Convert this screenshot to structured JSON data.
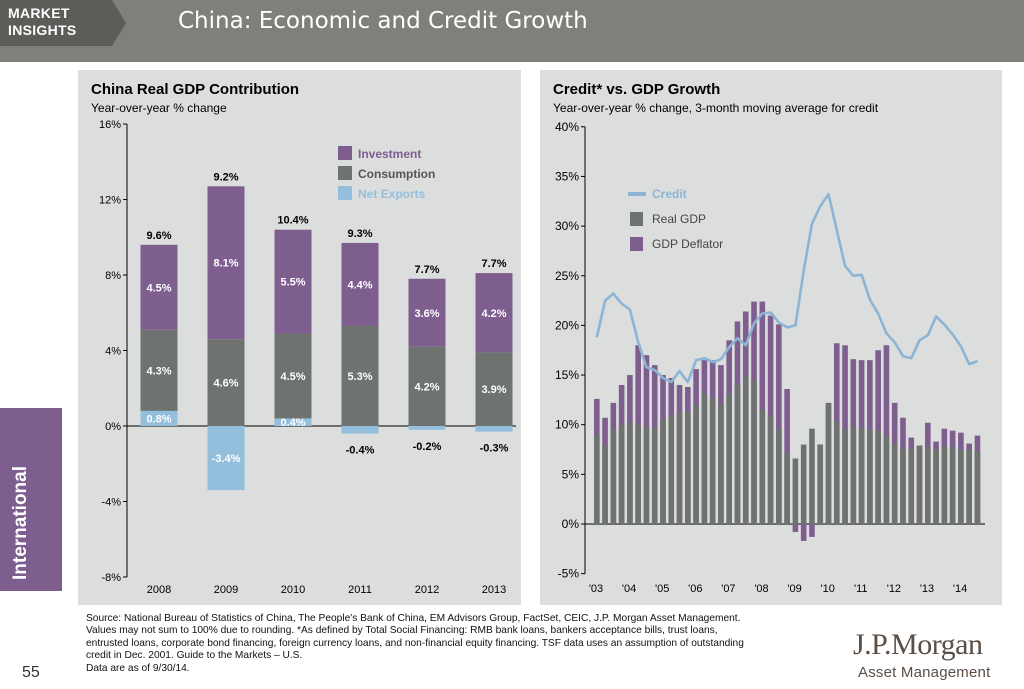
{
  "header": {
    "section_line1": "MARKET",
    "section_line2": "INSIGHTS",
    "title": "China: Economic and Credit Growth"
  },
  "side_tab": "International",
  "page_number": "55",
  "colors": {
    "investment": "#7e5d8f",
    "consumption": "#6e736f",
    "net_exports": "#94bfdc",
    "credit": "#8cb4d4",
    "real_gdp": "#6e736f",
    "gdp_deflator": "#7e5d8f",
    "panel_bg": "#dcdede"
  },
  "footnote": [
    "Source: National Bureau of Statistics of China, The People's Bank of China, EM Advisors Group, FactSet, CEIC, J.P. Morgan Asset Management.",
    "Values may not sum to 100% due to rounding. *As defined by Total Social Financing: RMB bank loans, bankers acceptance bills, trust loans,",
    "entrusted loans, corporate bond financing, foreign currency loans, and non-financial equity financing. TSF data uses an assumption of outstanding",
    "credit in Dec. 2001. Guide to the Markets – U.S.",
    "Data are as of 9/30/14."
  ],
  "logo": {
    "main": "J.P.Morgan",
    "sub": "Asset Management"
  },
  "chart_data": [
    {
      "type": "bar",
      "stacked": true,
      "title": "China Real GDP Contribution",
      "subtitle": "Year-over-year % change",
      "categories": [
        "2008",
        "2009",
        "2010",
        "2011",
        "2012",
        "2013"
      ],
      "series": [
        {
          "name": "Net Exports",
          "values": [
            0.8,
            -3.4,
            0.4,
            -0.4,
            -0.2,
            -0.3
          ],
          "labels": [
            "0.8%",
            "-3.4%",
            "0.4%",
            "-0.4%",
            "-0.2%",
            "-0.3%"
          ]
        },
        {
          "name": "Consumption",
          "values": [
            4.3,
            4.6,
            4.5,
            5.3,
            4.2,
            3.9
          ],
          "labels": [
            "4.3%",
            "4.6%",
            "4.5%",
            "5.3%",
            "4.2%",
            "3.9%"
          ]
        },
        {
          "name": "Investment",
          "values": [
            4.5,
            8.1,
            5.5,
            4.4,
            3.6,
            4.2
          ],
          "labels": [
            "4.5%",
            "8.1%",
            "5.5%",
            "4.4%",
            "3.6%",
            "4.2%"
          ]
        }
      ],
      "totals": [
        "9.6%",
        "9.2%",
        "10.4%",
        "9.3%",
        "7.7%",
        "7.7%"
      ],
      "legend_order": [
        "Investment",
        "Consumption",
        "Net Exports"
      ],
      "ylim": [
        -8,
        16
      ],
      "yticks": [
        "16%",
        "12%",
        "8%",
        "4%",
        "0%",
        "-4%",
        "-8%"
      ],
      "ytick_values": [
        16,
        12,
        8,
        4,
        0,
        -4,
        -8
      ],
      "legend_position": "top-right",
      "grid": false
    },
    {
      "type": "bar+line",
      "title": "Credit* vs. GDP Growth",
      "subtitle": "Year-over-year % change, 3-month moving average for credit",
      "x_tick_labels": [
        "'03",
        "'04",
        "'05",
        "'06",
        "'07",
        "'08",
        "'09",
        "'10",
        "'11",
        "'12",
        "'13",
        "'14"
      ],
      "x_tick_values": [
        2003,
        2004,
        2005,
        2006,
        2007,
        2008,
        2009,
        2010,
        2011,
        2012,
        2013,
        2014
      ],
      "yticks": [
        "40%",
        "35%",
        "30%",
        "25%",
        "20%",
        "15%",
        "10%",
        "5%",
        "0%",
        "-5%"
      ],
      "ytick_values": [
        40,
        35,
        30,
        25,
        20,
        15,
        10,
        5,
        0,
        -5
      ],
      "ylim": [
        -5,
        40
      ],
      "xlim": [
        2003,
        2014.75
      ],
      "legend_order": [
        "Credit",
        "Real GDP",
        "GDP Deflator"
      ],
      "legend_position": "top-left",
      "quarters": [
        2003.0,
        2003.25,
        2003.5,
        2003.75,
        2004.0,
        2004.25,
        2004.5,
        2004.75,
        2005.0,
        2005.25,
        2005.5,
        2005.75,
        2006.0,
        2006.25,
        2006.5,
        2006.75,
        2007.0,
        2007.25,
        2007.5,
        2007.75,
        2008.0,
        2008.25,
        2008.5,
        2008.75,
        2009.0,
        2009.25,
        2009.5,
        2009.75,
        2010.0,
        2010.25,
        2010.5,
        2010.75,
        2011.0,
        2011.25,
        2011.5,
        2011.75,
        2012.0,
        2012.25,
        2012.5,
        2012.75,
        2013.0,
        2013.25,
        2013.5,
        2013.75,
        2014.0,
        2014.25,
        2014.5
      ],
      "series": [
        {
          "name": "Real GDP",
          "kind": "bar",
          "values": [
            9.0,
            7.9,
            9.6,
            10.0,
            10.3,
            10.0,
            9.7,
            9.7,
            10.5,
            10.9,
            11.2,
            11.3,
            12.0,
            13.1,
            12.7,
            12.1,
            13.1,
            14.0,
            14.8,
            14.5,
            11.5,
            10.8,
            9.6,
            7.1,
            6.6,
            8.0,
            9.6,
            11.4,
            12.1,
            10.3,
            9.6,
            9.8,
            9.7,
            9.6,
            9.4,
            8.9,
            8.1,
            7.6,
            7.5,
            8.1,
            7.7,
            7.5,
            7.8,
            7.7,
            7.4,
            7.5,
            7.3
          ]
        },
        {
          "name": "GDP Deflator",
          "kind": "bar",
          "values": [
            12.6,
            10.7,
            12.2,
            14.0,
            15.0,
            18.0,
            17.0,
            16.0,
            15.0,
            14.7,
            14.0,
            13.8,
            15.6,
            16.5,
            16.5,
            16.0,
            18.5,
            20.4,
            21.4,
            22.4,
            22.4,
            21.0,
            20.1,
            13.6,
            -0.8,
            -1.7,
            -1.3,
            8.0,
            12.2,
            18.2,
            18.0,
            16.6,
            16.5,
            16.5,
            17.5,
            18.0,
            12.2,
            10.7,
            8.7,
            7.9,
            10.2,
            8.3,
            9.6,
            9.4,
            9.2,
            8.1,
            8.9
          ]
        },
        {
          "name": "Credit",
          "kind": "line",
          "values": [
            18.8,
            22.5,
            23.2,
            22.2,
            21.6,
            18.3,
            15.8,
            15.5,
            14.7,
            14.3,
            15.4,
            14.3,
            16.5,
            16.7,
            16.3,
            16.6,
            17.8,
            18.7,
            18.0,
            20.2,
            21.2,
            21.3,
            20.3,
            19.8,
            20.0,
            25.5,
            30.2,
            32.0,
            33.2,
            29.6,
            26.0,
            25.0,
            25.1,
            22.6,
            21.2,
            19.2,
            18.3,
            16.9,
            16.7,
            18.5,
            19.0,
            20.9,
            20.1,
            19.1,
            17.9,
            16.1,
            16.4
          ]
        }
      ],
      "grid": false
    }
  ]
}
